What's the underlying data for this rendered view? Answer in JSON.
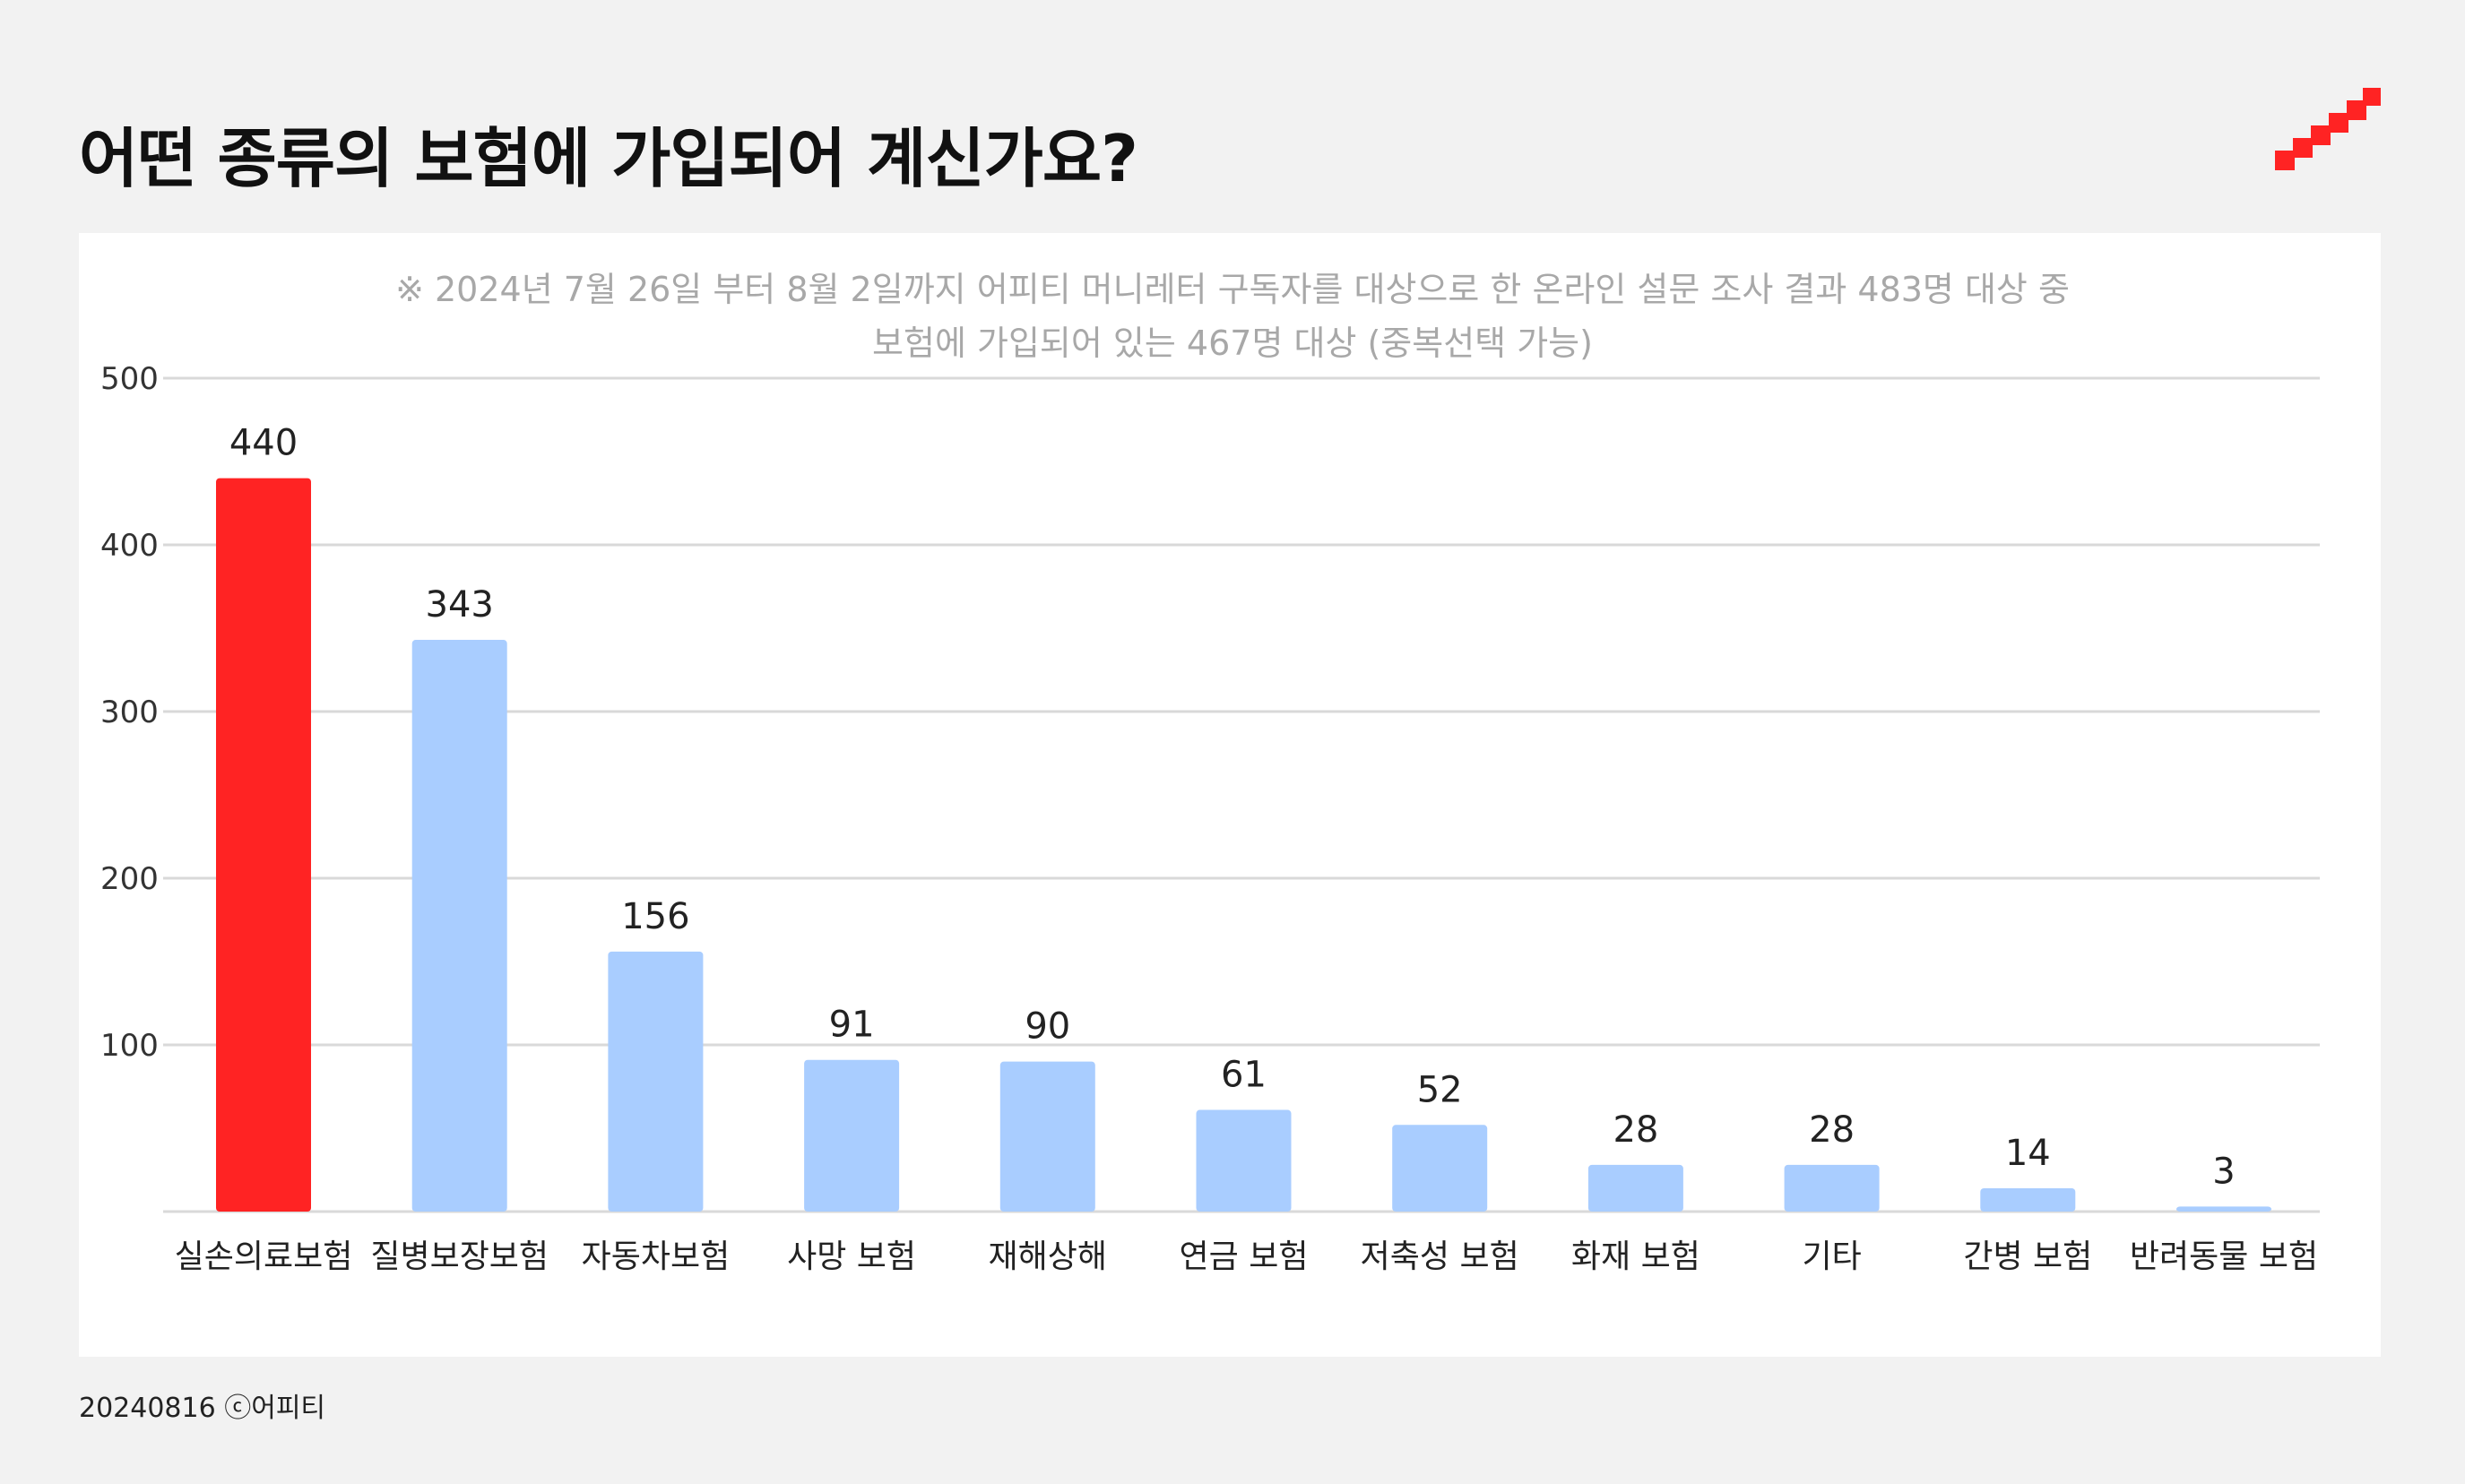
{
  "title": "어떤 종류의 보험에 가입되어 계신가요?",
  "footer": "20240816 ⓒ어피티",
  "colors": {
    "highlight": "#ff2323",
    "bar": "#a9cdff",
    "grid": "#d9d9d9",
    "logo": "#ff2323"
  },
  "chart_data": {
    "type": "bar",
    "subtitle_lines": [
      "※ 2024년 7월 26일 부터 8월 2일까지 어피티 머니레터 구독자를 대상으로 한 온라인 설문 조사 결과 483명 대상 중",
      "보험에 가입되어 있는 467명 대상 (중복선택 가능)"
    ],
    "categories": [
      "실손의료보험",
      "질병보장보험",
      "자동차보험",
      "사망 보험",
      "재해상해",
      "연금 보험",
      "저축성 보험",
      "화재 보험",
      "기타",
      "간병 보험",
      "반려동물 보험"
    ],
    "values": [
      440,
      343,
      156,
      91,
      90,
      61,
      52,
      28,
      28,
      14,
      3
    ],
    "highlight_index": 0,
    "ylim": [
      0,
      500
    ],
    "yticks": [
      100,
      200,
      300,
      400,
      500
    ],
    "grid": true,
    "data_labels": true
  }
}
